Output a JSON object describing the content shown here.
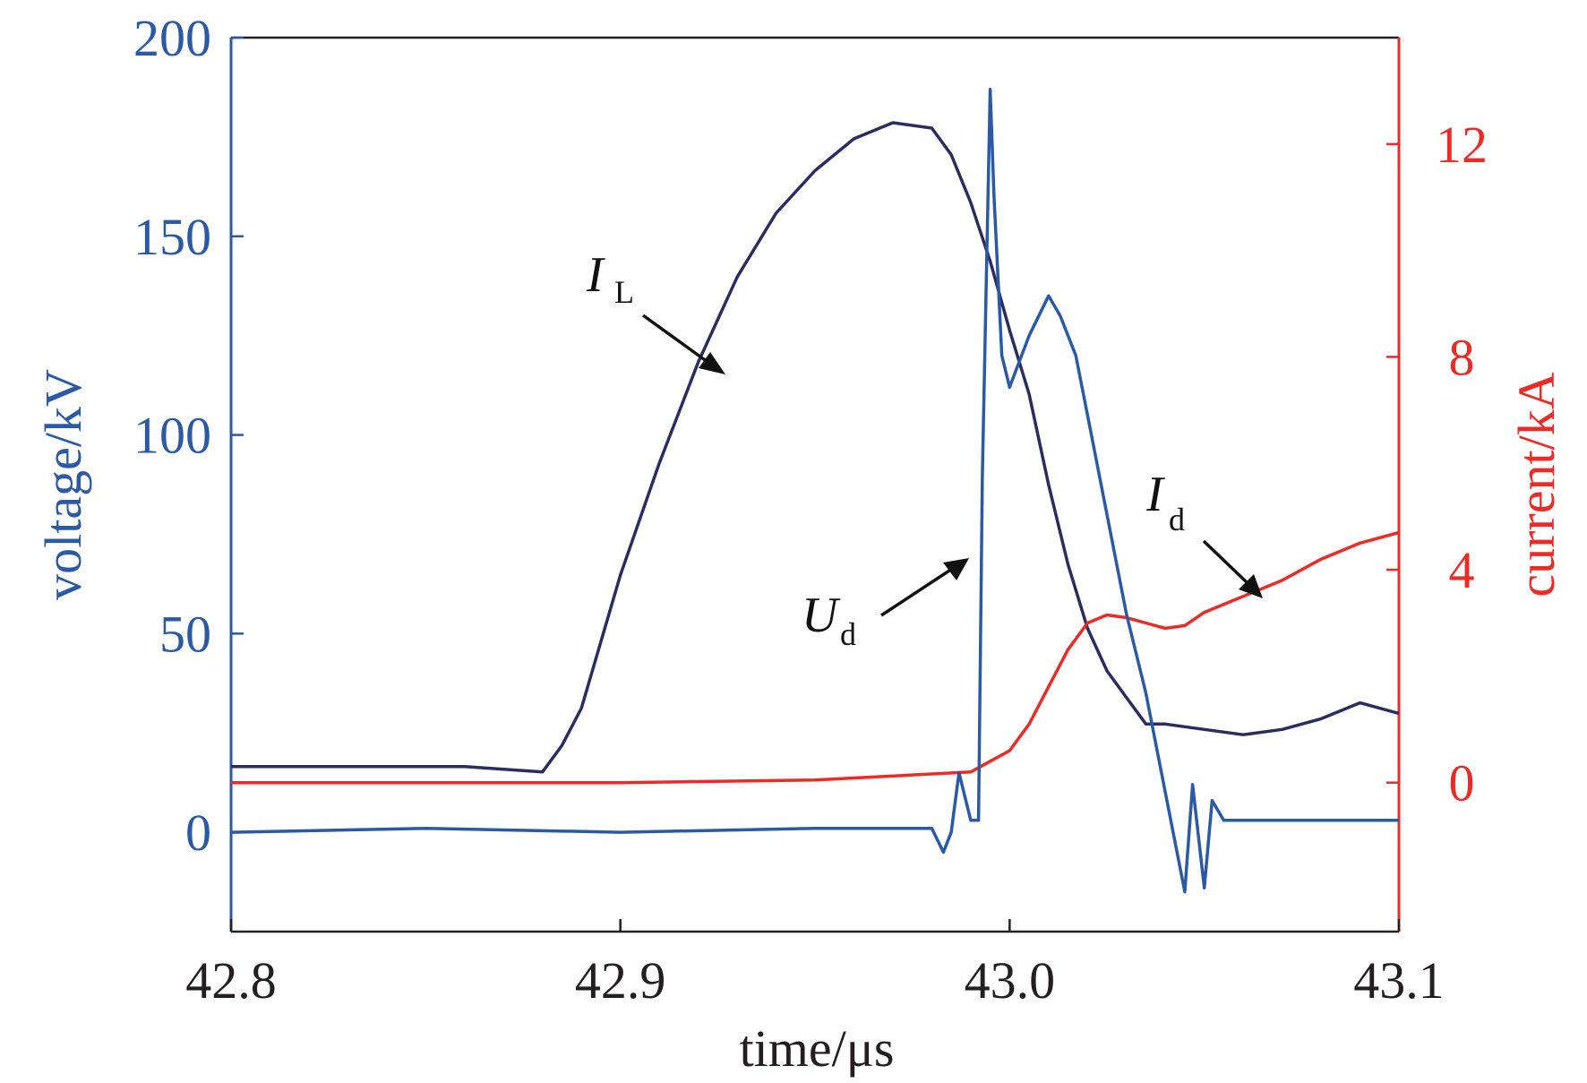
{
  "chart_data": {
    "type": "line",
    "xlabel": "time/μs",
    "ylabel_left": "voltage/kV",
    "ylabel_right": "current/kA",
    "xlim": [
      42.8,
      43.1
    ],
    "ylim_left": [
      -25,
      200
    ],
    "ylim_right": [
      -2.8,
      14.0
    ],
    "x_ticks": [
      "42.8",
      "42.9",
      "43.0",
      "43.1"
    ],
    "y_left_ticks": [
      "0",
      "50",
      "100",
      "150",
      "200"
    ],
    "y_right_ticks": [
      "0",
      "4",
      "8",
      "12"
    ],
    "colors": {
      "Ud": "#2a5aa6",
      "IL": "#2b2d5e",
      "Id": "#ee2a24",
      "axis": "#231f20"
    },
    "grid": false,
    "series": [
      {
        "name": "IL",
        "label": "I",
        "label_sub": "L",
        "axis": "right",
        "x": [
          42.8,
          42.82,
          42.84,
          42.86,
          42.88,
          42.885,
          42.89,
          42.9,
          42.91,
          42.92,
          42.93,
          42.94,
          42.95,
          42.96,
          42.97,
          42.98,
          42.985,
          42.99,
          42.995,
          43.0,
          43.005,
          43.01,
          43.015,
          43.02,
          43.025,
          43.03,
          43.035,
          43.04,
          43.05,
          43.06,
          43.07,
          43.08,
          43.09,
          43.1
        ],
        "y": [
          0.3,
          0.3,
          0.3,
          0.3,
          0.2,
          0.7,
          1.4,
          3.9,
          6.0,
          7.9,
          9.5,
          10.7,
          11.5,
          12.1,
          12.4,
          12.3,
          11.8,
          10.9,
          9.8,
          8.5,
          7.3,
          5.6,
          4.1,
          2.9,
          2.1,
          1.6,
          1.1,
          1.1,
          1.0,
          0.9,
          1.0,
          1.2,
          1.5,
          1.3
        ]
      },
      {
        "name": "Ud",
        "label": "U",
        "label_sub": "d",
        "axis": "left",
        "x": [
          42.8,
          42.85,
          42.9,
          42.95,
          42.98,
          42.983,
          42.985,
          42.987,
          42.99,
          42.992,
          42.993,
          42.995,
          42.996,
          42.998,
          43.0,
          43.005,
          43.01,
          43.013,
          43.017,
          43.02,
          43.025,
          43.03,
          43.035,
          43.04,
          43.045,
          43.047,
          43.05,
          43.052,
          43.055,
          43.06,
          43.08,
          43.1
        ],
        "y": [
          0,
          1,
          0,
          1,
          1,
          -5,
          0,
          15,
          3,
          3,
          90,
          187,
          160,
          120,
          112,
          125,
          135,
          130,
          120,
          105,
          80,
          55,
          35,
          10,
          -15,
          12,
          -14,
          8,
          3,
          3,
          3,
          3
        ]
      },
      {
        "name": "Id",
        "label": "I",
        "label_sub": "d",
        "axis": "right",
        "x": [
          42.8,
          42.85,
          42.9,
          42.95,
          42.99,
          43.0,
          43.005,
          43.01,
          43.015,
          43.02,
          43.025,
          43.03,
          43.035,
          43.04,
          43.045,
          43.05,
          43.06,
          43.07,
          43.08,
          43.09,
          43.1
        ],
        "y": [
          0.0,
          0.0,
          0.0,
          0.05,
          0.2,
          0.6,
          1.1,
          1.8,
          2.5,
          3.0,
          3.15,
          3.1,
          3.0,
          2.9,
          2.95,
          3.2,
          3.5,
          3.8,
          4.2,
          4.5,
          4.7
        ]
      }
    ]
  }
}
